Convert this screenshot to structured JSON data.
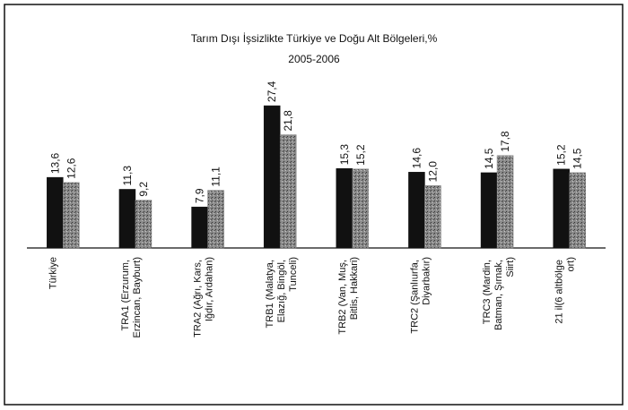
{
  "chart_data": {
    "type": "bar",
    "title": "Tarım Dışı İşsizlikte Türkiye ve Doğu Alt Bölgeleri,%",
    "subtitle": "2005-2006",
    "categories": [
      "Türkiye",
      "TRA1 (Erzurum, Erzincan, Bayburt)",
      "TRA2 (Ağrı, Kars, Iğdır, Ardahan)",
      "TRB1 (Malatya, Elazığ, Bingöl, Tunceli)",
      "TRB2 (Van, Muş, Bitlis, Hakkari)",
      "TRC2 (Şanlıurfa, Diyarbakır)",
      "TRC3 (Mardin, Batman, Şırnak, Siirt)",
      "21 il(6 altbölge ort)"
    ],
    "series": [
      {
        "color": "#111111",
        "values": [
          13.6,
          11.3,
          7.9,
          27.4,
          15.3,
          14.6,
          14.5,
          15.2
        ],
        "value_labels": [
          "13,6",
          "11,3",
          "7,9",
          "27,4",
          "15,3",
          "14,6",
          "14,5",
          "15,2"
        ]
      },
      {
        "color": "#7a7a7a",
        "values": [
          12.6,
          9.2,
          11.1,
          21.8,
          15.2,
          12.0,
          17.8,
          14.5
        ],
        "value_labels": [
          "12,6",
          "9,2",
          "11,1",
          "21,8",
          "15,2",
          "12,0",
          "17,8",
          "14,5"
        ]
      }
    ],
    "ylim": [
      0,
      30
    ]
  }
}
